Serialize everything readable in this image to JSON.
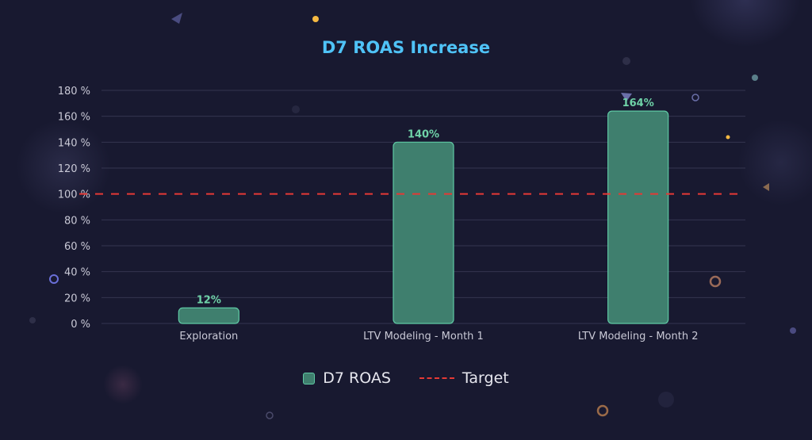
{
  "chart_data": {
    "type": "bar",
    "title": "D7 ROAS Increase",
    "categories": [
      "Exploration",
      "LTV Modeling - Month 1",
      "LTV Modeling - Month 2"
    ],
    "series": [
      {
        "name": "D7 ROAS",
        "values": [
          12,
          140,
          164
        ],
        "labels": [
          "12%",
          "140%",
          "164%"
        ]
      }
    ],
    "reference_line": {
      "name": "Target",
      "value": 100,
      "style": "dashed"
    },
    "ylim": [
      0,
      180
    ],
    "yticks": [
      "0 %",
      "20 %",
      "40 %",
      "60 %",
      "80 %",
      "100 %",
      "120 %",
      "140 %",
      "160 %",
      "180 %"
    ],
    "grid": true,
    "legend_placement": "bottom",
    "colors": {
      "bar": "#3f7f6e",
      "bar_border": "#5fc9a4",
      "label": "#6fd3a8",
      "target": "#e53935",
      "title": "#4fc3f7",
      "background": "#181930"
    }
  }
}
